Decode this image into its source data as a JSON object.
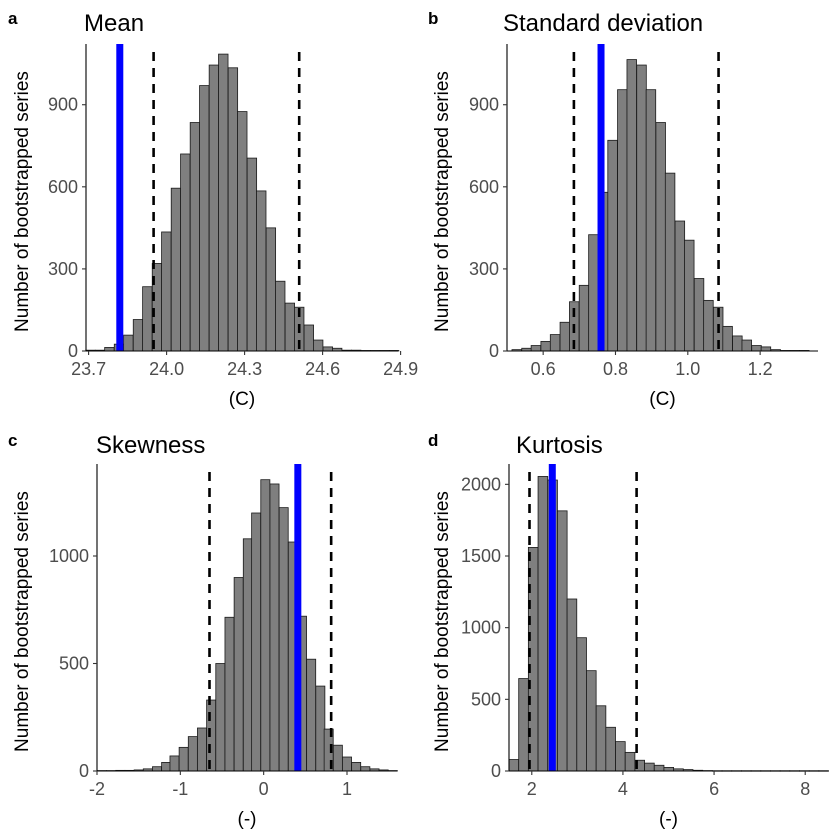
{
  "chart_data": [
    {
      "type": "bar",
      "panel": "a",
      "title": "Mean",
      "xlabel": "(C)",
      "ylabel": "Number of bootstrapped series",
      "xlim": [
        23.69,
        24.89
      ],
      "ylim": [
        0,
        1100
      ],
      "xticks": [
        23.7,
        24.0,
        24.3,
        24.6,
        24.9
      ],
      "xtick_labels": [
        "23.7",
        "24.0",
        "24.3",
        "24.6",
        "24.9"
      ],
      "yticks": [
        0,
        300,
        600,
        900
      ],
      "ytick_labels": [
        "0",
        "300",
        "600",
        "900"
      ],
      "bin_width": 0.0365,
      "bars": [
        {
          "x": 23.707,
          "y": 3
        },
        {
          "x": 23.744,
          "y": 3
        },
        {
          "x": 23.78,
          "y": 13
        },
        {
          "x": 23.817,
          "y": 25
        },
        {
          "x": 23.853,
          "y": 58
        },
        {
          "x": 23.89,
          "y": 115
        },
        {
          "x": 23.926,
          "y": 235
        },
        {
          "x": 23.963,
          "y": 320
        },
        {
          "x": 23.999,
          "y": 435
        },
        {
          "x": 24.036,
          "y": 595
        },
        {
          "x": 24.072,
          "y": 720
        },
        {
          "x": 24.109,
          "y": 835
        },
        {
          "x": 24.145,
          "y": 970
        },
        {
          "x": 24.182,
          "y": 1045
        },
        {
          "x": 24.218,
          "y": 1085
        },
        {
          "x": 24.255,
          "y": 1035
        },
        {
          "x": 24.291,
          "y": 875
        },
        {
          "x": 24.328,
          "y": 705
        },
        {
          "x": 24.364,
          "y": 585
        },
        {
          "x": 24.401,
          "y": 450
        },
        {
          "x": 24.437,
          "y": 255
        },
        {
          "x": 24.474,
          "y": 175
        },
        {
          "x": 24.51,
          "y": 160
        },
        {
          "x": 24.547,
          "y": 95
        },
        {
          "x": 24.583,
          "y": 40
        },
        {
          "x": 24.62,
          "y": 15
        },
        {
          "x": 24.656,
          "y": 10
        },
        {
          "x": 24.693,
          "y": 3
        },
        {
          "x": 24.729,
          "y": 3
        },
        {
          "x": 24.766,
          "y": 2
        },
        {
          "x": 24.802,
          "y": 2
        },
        {
          "x": 24.839,
          "y": 2
        },
        {
          "x": 24.875,
          "y": 2
        }
      ],
      "observed_value": 23.82,
      "ci_lower": 23.95,
      "ci_upper": 24.51
    },
    {
      "type": "bar",
      "panel": "b",
      "title": "Standard deviation",
      "xlabel": "(C)",
      "ylabel": "Number of bootstrapped series",
      "xlim": [
        0.5,
        1.36
      ],
      "ylim": [
        0,
        1100
      ],
      "xticks": [
        0.6,
        0.8,
        1.0,
        1.2
      ],
      "xtick_labels": [
        "0.6",
        "0.8",
        "1.0",
        "1.2"
      ],
      "yticks": [
        0,
        300,
        600,
        900
      ],
      "ytick_labels": [
        "0",
        "300",
        "600",
        "900"
      ],
      "bin_width": 0.0265,
      "bars": [
        {
          "x": 0.527,
          "y": 5
        },
        {
          "x": 0.554,
          "y": 10
        },
        {
          "x": 0.58,
          "y": 20
        },
        {
          "x": 0.607,
          "y": 35
        },
        {
          "x": 0.633,
          "y": 60
        },
        {
          "x": 0.66,
          "y": 105
        },
        {
          "x": 0.686,
          "y": 180
        },
        {
          "x": 0.713,
          "y": 240
        },
        {
          "x": 0.739,
          "y": 425
        },
        {
          "x": 0.766,
          "y": 580
        },
        {
          "x": 0.792,
          "y": 770
        },
        {
          "x": 0.819,
          "y": 955
        },
        {
          "x": 0.845,
          "y": 1065
        },
        {
          "x": 0.872,
          "y": 1045
        },
        {
          "x": 0.898,
          "y": 955
        },
        {
          "x": 0.925,
          "y": 835
        },
        {
          "x": 0.951,
          "y": 650
        },
        {
          "x": 0.978,
          "y": 475
        },
        {
          "x": 1.004,
          "y": 405
        },
        {
          "x": 1.031,
          "y": 265
        },
        {
          "x": 1.057,
          "y": 185
        },
        {
          "x": 1.084,
          "y": 160
        },
        {
          "x": 1.11,
          "y": 90
        },
        {
          "x": 1.137,
          "y": 55
        },
        {
          "x": 1.163,
          "y": 40
        },
        {
          "x": 1.19,
          "y": 20
        },
        {
          "x": 1.216,
          "y": 15
        },
        {
          "x": 1.243,
          "y": 5
        },
        {
          "x": 1.269,
          "y": 2
        },
        {
          "x": 1.296,
          "y": 2
        },
        {
          "x": 1.322,
          "y": 2
        }
      ],
      "observed_value": 0.76,
      "ci_lower": 0.685,
      "ci_upper": 1.085
    },
    {
      "type": "bar",
      "panel": "c",
      "title": "Skewness",
      "xlabel": "(-)",
      "ylabel": "Number of bootstrapped series",
      "xlim": [
        -2.0,
        1.6
      ],
      "ylim": [
        0,
        1400
      ],
      "xticks": [
        -2,
        -1,
        0,
        1
      ],
      "xtick_labels": [
        "-2",
        "-1",
        "0",
        "1"
      ],
      "yticks": [
        0,
        500,
        1000
      ],
      "ytick_labels": [
        "0",
        "500",
        "1000"
      ],
      "bin_width": 0.109,
      "bars": [
        {
          "x": -1.94,
          "y": 2
        },
        {
          "x": -1.83,
          "y": 2
        },
        {
          "x": -1.72,
          "y": 3
        },
        {
          "x": -1.61,
          "y": 3
        },
        {
          "x": -1.5,
          "y": 5
        },
        {
          "x": -1.39,
          "y": 10
        },
        {
          "x": -1.28,
          "y": 20
        },
        {
          "x": -1.17,
          "y": 40
        },
        {
          "x": -1.07,
          "y": 70
        },
        {
          "x": -0.96,
          "y": 110
        },
        {
          "x": -0.85,
          "y": 160
        },
        {
          "x": -0.74,
          "y": 200
        },
        {
          "x": -0.63,
          "y": 330
        },
        {
          "x": -0.52,
          "y": 500
        },
        {
          "x": -0.41,
          "y": 715
        },
        {
          "x": -0.3,
          "y": 900
        },
        {
          "x": -0.19,
          "y": 1080
        },
        {
          "x": -0.09,
          "y": 1200
        },
        {
          "x": 0.02,
          "y": 1355
        },
        {
          "x": 0.13,
          "y": 1335
        },
        {
          "x": 0.24,
          "y": 1225
        },
        {
          "x": 0.35,
          "y": 1065
        },
        {
          "x": 0.46,
          "y": 720
        },
        {
          "x": 0.57,
          "y": 520
        },
        {
          "x": 0.68,
          "y": 395
        },
        {
          "x": 0.78,
          "y": 195
        },
        {
          "x": 0.89,
          "y": 120
        },
        {
          "x": 1.0,
          "y": 65
        },
        {
          "x": 1.11,
          "y": 40
        },
        {
          "x": 1.22,
          "y": 20
        },
        {
          "x": 1.33,
          "y": 10
        },
        {
          "x": 1.44,
          "y": 5
        },
        {
          "x": 1.55,
          "y": 2
        }
      ],
      "observed_value": 0.41,
      "ci_lower": -0.65,
      "ci_upper": 0.81
    },
    {
      "type": "bar",
      "panel": "d",
      "title": "Kurtosis",
      "xlabel": "(-)",
      "ylabel": "Number of bootstrapped series",
      "xlim": [
        1.5,
        8.5
      ],
      "ylim": [
        0,
        2100
      ],
      "xticks": [
        2,
        4,
        6,
        8
      ],
      "xtick_labels": [
        "2",
        "4",
        "6",
        "8"
      ],
      "yticks": [
        0,
        500,
        1000,
        1500,
        2000
      ],
      "ytick_labels": [
        "0",
        "500",
        "1000",
        "1500",
        "2000"
      ],
      "bin_width": 0.2125,
      "bars": [
        {
          "x": 1.606,
          "y": 80
        },
        {
          "x": 1.819,
          "y": 645
        },
        {
          "x": 2.031,
          "y": 1560
        },
        {
          "x": 2.244,
          "y": 2055
        },
        {
          "x": 2.456,
          "y": 2030
        },
        {
          "x": 2.669,
          "y": 1815
        },
        {
          "x": 2.881,
          "y": 1200
        },
        {
          "x": 3.094,
          "y": 930
        },
        {
          "x": 3.306,
          "y": 700
        },
        {
          "x": 3.519,
          "y": 455
        },
        {
          "x": 3.731,
          "y": 305
        },
        {
          "x": 3.944,
          "y": 205
        },
        {
          "x": 4.156,
          "y": 130
        },
        {
          "x": 4.369,
          "y": 75
        },
        {
          "x": 4.581,
          "y": 55
        },
        {
          "x": 4.794,
          "y": 40
        },
        {
          "x": 5.006,
          "y": 25
        },
        {
          "x": 5.219,
          "y": 15
        },
        {
          "x": 5.431,
          "y": 10
        },
        {
          "x": 5.644,
          "y": 5
        },
        {
          "x": 5.856,
          "y": 3
        },
        {
          "x": 6.069,
          "y": 2
        },
        {
          "x": 6.281,
          "y": 2
        },
        {
          "x": 6.494,
          "y": 2
        },
        {
          "x": 6.706,
          "y": 2
        },
        {
          "x": 6.919,
          "y": 2
        },
        {
          "x": 7.131,
          "y": 2
        },
        {
          "x": 7.344,
          "y": 2
        },
        {
          "x": 7.556,
          "y": 2
        },
        {
          "x": 7.769,
          "y": 2
        },
        {
          "x": 7.981,
          "y": 2
        },
        {
          "x": 8.194,
          "y": 2
        },
        {
          "x": 8.406,
          "y": 2
        }
      ],
      "observed_value": 2.45,
      "ci_lower": 1.95,
      "ci_upper": 4.3
    }
  ],
  "colors": {
    "bar_fill": "#7f7f7f",
    "bar_stroke": "#1a1a1a",
    "observed_line": "#0000ff",
    "ci_line": "#000000",
    "axis": "#000000",
    "tick_text": "#4d4d4d",
    "background": "#ffffff"
  }
}
